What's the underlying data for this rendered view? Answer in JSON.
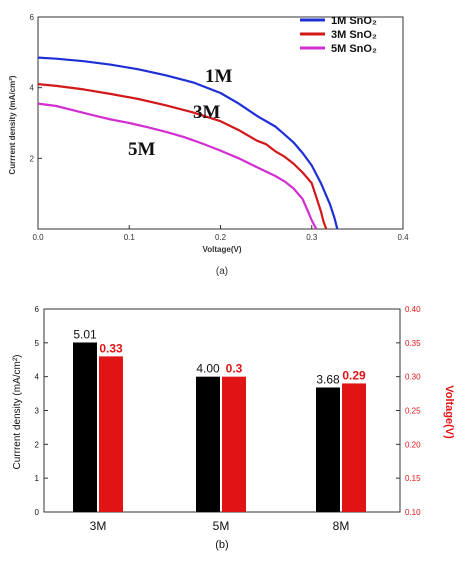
{
  "figure": {
    "panel_a_caption": "(a)",
    "panel_b_caption": "(b)"
  },
  "chart_data": [
    {
      "type": "line",
      "panel": "(a)",
      "xlabel": "Voltage(V)",
      "ylabel": "Currrent density (mA/cm²)",
      "xlim": [
        0.0,
        0.4
      ],
      "ylim": [
        0,
        6
      ],
      "x_ticks": [
        "0.0",
        "0.1",
        "0.2",
        "0.3",
        "0.4"
      ],
      "y_ticks": [
        "2",
        "4",
        "6"
      ],
      "grid": false,
      "legend_position": "top-right",
      "series": [
        {
          "name": "1M SnO₂",
          "color": "#1f2fd6",
          "in_plot_label": "1M",
          "points": [
            [
              0.0,
              4.85
            ],
            [
              0.02,
              4.82
            ],
            [
              0.05,
              4.75
            ],
            [
              0.08,
              4.65
            ],
            [
              0.11,
              4.52
            ],
            [
              0.14,
              4.35
            ],
            [
              0.17,
              4.15
            ],
            [
              0.2,
              3.85
            ],
            [
              0.22,
              3.55
            ],
            [
              0.24,
              3.2
            ],
            [
              0.26,
              2.9
            ],
            [
              0.27,
              2.68
            ],
            [
              0.28,
              2.45
            ],
            [
              0.29,
              2.15
            ],
            [
              0.3,
              1.8
            ],
            [
              0.31,
              1.3
            ],
            [
              0.32,
              0.7
            ],
            [
              0.325,
              0.3
            ],
            [
              0.328,
              0.0
            ]
          ]
        },
        {
          "name": "3M SnO₂",
          "color": "#d21818",
          "in_plot_label": "3M",
          "points": [
            [
              0.0,
              4.1
            ],
            [
              0.02,
              4.05
            ],
            [
              0.05,
              3.95
            ],
            [
              0.08,
              3.82
            ],
            [
              0.11,
              3.68
            ],
            [
              0.14,
              3.5
            ],
            [
              0.17,
              3.3
            ],
            [
              0.2,
              3.05
            ],
            [
              0.22,
              2.8
            ],
            [
              0.24,
              2.5
            ],
            [
              0.25,
              2.4
            ],
            [
              0.26,
              2.2
            ],
            [
              0.27,
              2.05
            ],
            [
              0.28,
              1.85
            ],
            [
              0.29,
              1.6
            ],
            [
              0.3,
              1.3
            ],
            [
              0.305,
              0.9
            ],
            [
              0.31,
              0.5
            ],
            [
              0.313,
              0.2
            ],
            [
              0.316,
              0.0
            ]
          ]
        },
        {
          "name": "5M SnO₂",
          "color": "#d22ed2",
          "in_plot_label": "5M",
          "points": [
            [
              0.0,
              3.55
            ],
            [
              0.02,
              3.48
            ],
            [
              0.04,
              3.35
            ],
            [
              0.06,
              3.22
            ],
            [
              0.08,
              3.1
            ],
            [
              0.1,
              3.0
            ],
            [
              0.12,
              2.88
            ],
            [
              0.14,
              2.75
            ],
            [
              0.16,
              2.6
            ],
            [
              0.18,
              2.42
            ],
            [
              0.2,
              2.22
            ],
            [
              0.22,
              2.0
            ],
            [
              0.24,
              1.75
            ],
            [
              0.26,
              1.5
            ],
            [
              0.27,
              1.35
            ],
            [
              0.28,
              1.15
            ],
            [
              0.29,
              0.85
            ],
            [
              0.295,
              0.55
            ],
            [
              0.3,
              0.25
            ],
            [
              0.305,
              0.0
            ]
          ]
        }
      ]
    },
    {
      "type": "bar",
      "panel": "(b)",
      "categories": [
        "3M",
        "5M",
        "8M"
      ],
      "ylabel": "Currrent density (mA/cm²)",
      "ylabel_right": "Voltage(V)",
      "ylim": [
        0,
        6
      ],
      "ylim_right": [
        0.1,
        0.4
      ],
      "y_ticks": [
        "0",
        "1",
        "2",
        "3",
        "4",
        "5",
        "6"
      ],
      "y_ticks_right": [
        "0.10",
        "0.15",
        "0.20",
        "0.25",
        "0.30",
        "0.35",
        "0.40"
      ],
      "series": [
        {
          "color": "#000000",
          "axis": "left",
          "values": [
            5.01,
            4.0,
            3.68
          ],
          "labels": [
            "5.01",
            "4.00",
            "3.68"
          ]
        },
        {
          "color": "#e01414",
          "axis": "right",
          "values": [
            0.33,
            0.3,
            0.29
          ],
          "labels": [
            "0.33",
            "0.3",
            "0.29"
          ]
        }
      ]
    }
  ]
}
